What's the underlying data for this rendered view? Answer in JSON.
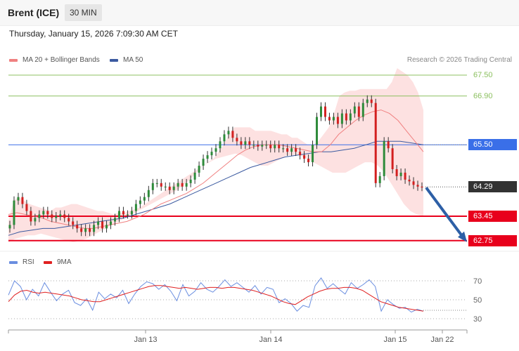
{
  "header": {
    "instrument": "Brent (ICE)",
    "timeframe": "30 MIN"
  },
  "datetime": "Thursday, January 15, 2026 7:09:30 AM CET",
  "legend": {
    "ma20_label": "MA 20 + Bollinger Bands",
    "ma50_label": "MA 50",
    "rsi_label": "RSI",
    "ma9_label": "9MA"
  },
  "credit": "Research © 2026 Trading Central",
  "colors": {
    "ma20": "#f08080",
    "ma50": "#3b5aa0",
    "bollinger": "#fddcdc",
    "resistance": "#8cc060",
    "pivot": "#3a6fe8",
    "support": "#e8001c",
    "current": "#333333",
    "rsi": "#6a8ee0",
    "rsi_ma": "#e02020",
    "arrow": "#2d5fa6",
    "bull": "#2e8b3a",
    "bear": "#d32020"
  },
  "chart_data": [
    {
      "type": "candlestick",
      "x_labels": [
        "Jan 13",
        "Jan 14",
        "Jan 15",
        "Jan 22"
      ],
      "price_levels": [
        {
          "value": 67.5,
          "label": "67.50",
          "kind": "resistance"
        },
        {
          "value": 66.9,
          "label": "66.90",
          "kind": "resistance"
        },
        {
          "value": 65.5,
          "label": "65.50",
          "kind": "pivot"
        },
        {
          "value": 64.29,
          "label": "64.29",
          "kind": "current"
        },
        {
          "value": 63.45,
          "label": "63.45",
          "kind": "support"
        },
        {
          "value": 62.75,
          "label": "62.75",
          "kind": "support"
        }
      ],
      "close": [
        63.2,
        63.9,
        64.0,
        63.8,
        63.6,
        63.3,
        63.4,
        63.5,
        63.6,
        63.5,
        63.4,
        63.45,
        63.5,
        63.4,
        63.3,
        63.2,
        63.1,
        63.0,
        63.1,
        63.0,
        63.2,
        63.3,
        63.1,
        63.2,
        63.3,
        63.4,
        63.6,
        63.5,
        63.5,
        63.6,
        63.8,
        63.9,
        64.0,
        64.2,
        64.4,
        64.4,
        64.3,
        64.3,
        64.2,
        64.3,
        64.4,
        64.3,
        64.4,
        64.5,
        64.7,
        64.9,
        65.1,
        65.2,
        65.3,
        65.4,
        65.6,
        65.8,
        65.9,
        65.7,
        65.6,
        65.5,
        65.6,
        65.5,
        65.5,
        65.45,
        65.5,
        65.5,
        65.4,
        65.5,
        65.4,
        65.4,
        65.3,
        65.4,
        65.3,
        65.2,
        65.1,
        65.0,
        65.5,
        66.3,
        66.6,
        66.3,
        66.2,
        66.3,
        66.1,
        66.4,
        66.2,
        66.4,
        66.6,
        66.3,
        66.7,
        66.8,
        66.7,
        64.4,
        64.6,
        65.6,
        65.4,
        64.8,
        64.6,
        64.7,
        64.5,
        64.45,
        64.35,
        64.3,
        64.29
      ],
      "bollinger_upper": [
        63.3,
        63.9,
        64.0,
        63.9,
        63.8,
        63.75,
        63.7,
        63.65,
        63.6,
        63.7,
        63.7,
        63.75,
        63.8,
        63.8,
        63.75,
        63.7,
        63.65,
        63.6,
        63.6,
        63.55,
        63.5,
        63.55,
        63.55,
        63.6,
        63.65,
        63.7,
        63.8,
        63.9,
        64.0,
        64.1,
        64.2,
        64.3,
        64.4,
        64.5,
        64.6,
        64.7,
        64.8,
        64.9,
        65.0,
        65.1,
        65.3,
        65.5,
        65.8,
        66.0,
        66.0,
        66.0,
        66.0,
        65.9,
        65.9,
        65.9,
        65.9,
        65.85,
        65.8,
        65.8,
        65.7,
        65.7,
        65.6,
        65.5,
        65.5,
        65.6,
        65.8,
        66.0,
        66.4,
        66.9,
        67.0,
        67.05,
        67.05,
        67.1,
        67.1,
        67.1,
        67.1,
        67.1,
        67.1,
        67.3,
        67.7,
        67.6,
        67.5,
        67.3,
        67.0,
        66.5
      ],
      "bollinger_lower": [
        62.7,
        62.8,
        62.85,
        62.9,
        62.9,
        62.95,
        62.9,
        62.85,
        62.8,
        62.75,
        62.7,
        62.75,
        62.8,
        62.9,
        63.0,
        63.1,
        63.2,
        63.3,
        63.4,
        63.5,
        63.6,
        63.7,
        63.8,
        63.9,
        64.0,
        64.1,
        64.2,
        64.35,
        64.5,
        64.7,
        64.9,
        65.0,
        65.1,
        65.15,
        65.2,
        65.25,
        65.2,
        65.1,
        65.0,
        64.9,
        64.9,
        65.0,
        65.1,
        65.2,
        65.2,
        65.2,
        65.1,
        65.0,
        64.9,
        64.8,
        64.7,
        64.7,
        64.7,
        64.8,
        64.9,
        65.0,
        65.0,
        64.9,
        64.7,
        64.4,
        64.1,
        63.8,
        63.6,
        63.5,
        63.45
      ],
      "ma20": [
        63.5,
        63.55,
        63.5,
        63.45,
        63.4,
        63.3,
        63.25,
        63.2,
        63.15,
        63.1,
        63.1,
        63.15,
        63.2,
        63.25,
        63.3,
        63.4,
        63.5,
        63.65,
        63.8,
        63.9,
        64.0,
        64.1,
        64.25,
        64.4,
        64.6,
        64.8,
        65.0,
        65.2,
        65.35,
        65.45,
        65.5,
        65.5,
        65.5,
        65.45,
        65.4,
        65.35,
        65.3,
        65.3,
        65.5,
        65.8,
        66.0,
        66.2,
        66.35,
        66.45,
        66.5,
        66.4,
        66.2,
        65.9,
        65.6,
        65.3
      ],
      "ma50": [
        62.9,
        63.0,
        63.05,
        63.1,
        63.1,
        63.15,
        63.2,
        63.25,
        63.3,
        63.35,
        63.4,
        63.5,
        63.6,
        63.7,
        63.8,
        63.95,
        64.1,
        64.25,
        64.4,
        64.55,
        64.7,
        64.85,
        64.95,
        65.05,
        65.15,
        65.2,
        65.25,
        65.3,
        65.3,
        65.35,
        65.4,
        65.5,
        65.6,
        65.6,
        65.6,
        65.55,
        65.5
      ],
      "projection": {
        "from": 64.29,
        "to": 62.75
      }
    },
    {
      "type": "line",
      "series": [
        {
          "name": "RSI"
        },
        {
          "name": "9MA"
        }
      ],
      "y_ticks": [
        "70",
        "50",
        "30"
      ],
      "rsi": [
        55,
        70,
        64,
        50,
        61,
        54,
        68,
        58,
        49,
        56,
        60,
        47,
        44,
        51,
        39,
        58,
        51,
        56,
        52,
        60,
        46,
        56,
        64,
        69,
        67,
        61,
        66,
        59,
        49,
        66,
        54,
        59,
        68,
        61,
        58,
        64,
        71,
        64,
        68,
        63,
        58,
        65,
        56,
        63,
        61,
        47,
        51,
        46,
        38,
        44,
        42,
        65,
        73,
        62,
        67,
        61,
        56,
        68,
        62,
        66,
        71,
        64,
        38,
        50,
        45,
        41,
        42,
        37,
        40,
        38
      ],
      "rsi_ma": [
        48,
        55,
        59,
        60,
        58,
        57,
        58,
        57,
        56,
        55,
        54,
        52,
        50,
        49,
        48,
        48,
        50,
        52,
        54,
        56,
        58,
        60,
        62,
        64,
        65,
        65,
        64,
        63,
        62,
        63,
        62,
        61,
        62,
        63,
        63,
        62,
        63,
        63,
        62,
        61,
        60,
        58,
        56,
        54,
        51,
        48,
        46,
        45,
        49,
        53,
        56,
        59,
        61,
        62,
        62,
        63,
        63,
        62,
        60,
        56,
        52,
        48,
        46,
        44,
        42,
        41,
        40,
        39,
        38
      ]
    }
  ]
}
